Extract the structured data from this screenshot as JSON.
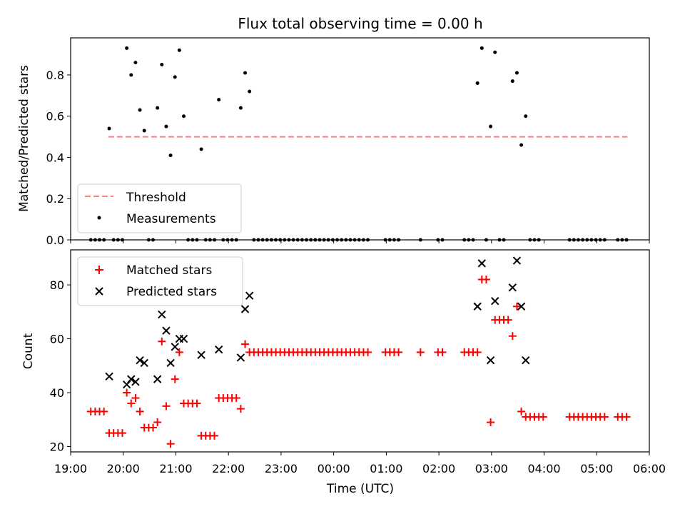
{
  "chart_data": [
    {
      "type": "scatter",
      "title": "Flux total observing time = 0.00 h",
      "xlabel": "",
      "ylabel": "Matched/Predicted stars",
      "xlim": [
        "19:00",
        "06:00"
      ],
      "ylim": [
        0.0,
        0.98
      ],
      "y_ticks": [
        "0.0",
        "0.2",
        "0.4",
        "0.6",
        "0.8"
      ],
      "legend_position": "lower-left",
      "threshold": {
        "name": "Threshold",
        "y": 0.5,
        "x_start": "19:43",
        "x_end": "05:35",
        "color": "#ff7f7f",
        "style": "dashed"
      },
      "measurements": {
        "name": "Measurements",
        "color": "#000000",
        "points": [
          [
            "19:44",
            0.54
          ],
          [
            "20:04",
            0.93
          ],
          [
            "20:09",
            0.8
          ],
          [
            "20:14",
            0.86
          ],
          [
            "20:19",
            0.63
          ],
          [
            "20:24",
            0.53
          ],
          [
            "20:39",
            0.64
          ],
          [
            "20:44",
            0.85
          ],
          [
            "20:49",
            0.55
          ],
          [
            "20:54",
            0.41
          ],
          [
            "20:59",
            0.79
          ],
          [
            "21:04",
            0.92
          ],
          [
            "21:09",
            0.6
          ],
          [
            "21:29",
            0.44
          ],
          [
            "21:49",
            0.68
          ],
          [
            "22:14",
            0.64
          ],
          [
            "22:19",
            0.81
          ],
          [
            "22:24",
            0.72
          ],
          [
            "02:44",
            0.76
          ],
          [
            "02:49",
            0.93
          ],
          [
            "02:59",
            0.55
          ],
          [
            "03:04",
            0.91
          ],
          [
            "03:24",
            0.77
          ],
          [
            "03:29",
            0.81
          ],
          [
            "03:34",
            0.46
          ],
          [
            "03:39",
            0.6
          ],
          [
            "19:23",
            0
          ],
          [
            "19:28",
            0
          ],
          [
            "19:33",
            0
          ],
          [
            "19:38",
            0
          ],
          [
            "19:49",
            0
          ],
          [
            "19:54",
            0
          ],
          [
            "19:59",
            0
          ],
          [
            "20:29",
            0
          ],
          [
            "20:34",
            0
          ],
          [
            "21:14",
            0
          ],
          [
            "21:19",
            0
          ],
          [
            "21:24",
            0
          ],
          [
            "21:34",
            0
          ],
          [
            "21:39",
            0
          ],
          [
            "21:44",
            0
          ],
          [
            "21:54",
            0
          ],
          [
            "21:59",
            0
          ],
          [
            "22:04",
            0
          ],
          [
            "22:09",
            0
          ],
          [
            "22:29",
            0
          ],
          [
            "22:34",
            0
          ],
          [
            "22:39",
            0
          ],
          [
            "22:44",
            0
          ],
          [
            "22:49",
            0
          ],
          [
            "22:54",
            0
          ],
          [
            "22:59",
            0
          ],
          [
            "23:04",
            0
          ],
          [
            "23:09",
            0
          ],
          [
            "23:14",
            0
          ],
          [
            "23:19",
            0
          ],
          [
            "23:24",
            0
          ],
          [
            "23:29",
            0
          ],
          [
            "23:34",
            0
          ],
          [
            "23:39",
            0
          ],
          [
            "23:44",
            0
          ],
          [
            "23:49",
            0
          ],
          [
            "23:54",
            0
          ],
          [
            "23:59",
            0
          ],
          [
            "00:04",
            0
          ],
          [
            "00:09",
            0
          ],
          [
            "00:14",
            0
          ],
          [
            "00:19",
            0
          ],
          [
            "00:24",
            0
          ],
          [
            "00:29",
            0
          ],
          [
            "00:34",
            0
          ],
          [
            "00:39",
            0
          ],
          [
            "00:59",
            0
          ],
          [
            "01:04",
            0
          ],
          [
            "01:09",
            0
          ],
          [
            "01:14",
            0
          ],
          [
            "01:39",
            0
          ],
          [
            "01:59",
            0
          ],
          [
            "02:04",
            0
          ],
          [
            "02:29",
            0
          ],
          [
            "02:34",
            0
          ],
          [
            "02:39",
            0
          ],
          [
            "02:54",
            0
          ],
          [
            "03:09",
            0
          ],
          [
            "03:14",
            0
          ],
          [
            "03:44",
            0
          ],
          [
            "03:49",
            0
          ],
          [
            "03:54",
            0
          ],
          [
            "04:29",
            0
          ],
          [
            "04:34",
            0
          ],
          [
            "04:39",
            0
          ],
          [
            "04:44",
            0
          ],
          [
            "04:49",
            0
          ],
          [
            "04:54",
            0
          ],
          [
            "04:59",
            0
          ],
          [
            "05:04",
            0
          ],
          [
            "05:09",
            0
          ],
          [
            "05:24",
            0
          ],
          [
            "05:29",
            0
          ],
          [
            "05:34",
            0
          ]
        ]
      }
    },
    {
      "type": "scatter",
      "title": "",
      "xlabel": "Time (UTC)",
      "ylabel": "Count",
      "xlim": [
        "19:00",
        "06:00"
      ],
      "ylim": [
        18,
        93
      ],
      "y_ticks": [
        "20",
        "40",
        "60",
        "80"
      ],
      "x_ticks": [
        "19:00",
        "20:00",
        "21:00",
        "22:00",
        "23:00",
        "00:00",
        "01:00",
        "02:00",
        "03:00",
        "04:00",
        "05:00",
        "06:00"
      ],
      "legend_position": "upper-left",
      "matched": {
        "name": "Matched stars",
        "color": "#ff0000",
        "marker": "+",
        "points": [
          [
            "19:23",
            33
          ],
          [
            "19:28",
            33
          ],
          [
            "19:33",
            33
          ],
          [
            "19:38",
            33
          ],
          [
            "19:44",
            25
          ],
          [
            "19:49",
            25
          ],
          [
            "19:54",
            25
          ],
          [
            "19:59",
            25
          ],
          [
            "20:04",
            40
          ],
          [
            "20:09",
            36
          ],
          [
            "20:14",
            38
          ],
          [
            "20:19",
            33
          ],
          [
            "20:24",
            27
          ],
          [
            "20:29",
            27
          ],
          [
            "20:34",
            27
          ],
          [
            "20:39",
            29
          ],
          [
            "20:44",
            59
          ],
          [
            "20:49",
            35
          ],
          [
            "20:54",
            21
          ],
          [
            "20:59",
            45
          ],
          [
            "21:04",
            55
          ],
          [
            "21:09",
            36
          ],
          [
            "21:14",
            36
          ],
          [
            "21:19",
            36
          ],
          [
            "21:24",
            36
          ],
          [
            "21:29",
            24
          ],
          [
            "21:34",
            24
          ],
          [
            "21:39",
            24
          ],
          [
            "21:44",
            24
          ],
          [
            "21:49",
            38
          ],
          [
            "21:54",
            38
          ],
          [
            "21:59",
            38
          ],
          [
            "22:04",
            38
          ],
          [
            "22:09",
            38
          ],
          [
            "22:14",
            34
          ],
          [
            "22:19",
            58
          ],
          [
            "22:24",
            55
          ],
          [
            "22:29",
            55
          ],
          [
            "22:34",
            55
          ],
          [
            "22:39",
            55
          ],
          [
            "22:44",
            55
          ],
          [
            "22:49",
            55
          ],
          [
            "22:54",
            55
          ],
          [
            "22:59",
            55
          ],
          [
            "23:04",
            55
          ],
          [
            "23:09",
            55
          ],
          [
            "23:14",
            55
          ],
          [
            "23:19",
            55
          ],
          [
            "23:24",
            55
          ],
          [
            "23:29",
            55
          ],
          [
            "23:34",
            55
          ],
          [
            "23:39",
            55
          ],
          [
            "23:44",
            55
          ],
          [
            "23:49",
            55
          ],
          [
            "23:54",
            55
          ],
          [
            "23:59",
            55
          ],
          [
            "00:04",
            55
          ],
          [
            "00:09",
            55
          ],
          [
            "00:14",
            55
          ],
          [
            "00:19",
            55
          ],
          [
            "00:24",
            55
          ],
          [
            "00:29",
            55
          ],
          [
            "00:34",
            55
          ],
          [
            "00:39",
            55
          ],
          [
            "00:59",
            55
          ],
          [
            "01:04",
            55
          ],
          [
            "01:09",
            55
          ],
          [
            "01:14",
            55
          ],
          [
            "01:39",
            55
          ],
          [
            "01:59",
            55
          ],
          [
            "02:04",
            55
          ],
          [
            "02:29",
            55
          ],
          [
            "02:34",
            55
          ],
          [
            "02:39",
            55
          ],
          [
            "02:44",
            55
          ],
          [
            "02:49",
            82
          ],
          [
            "02:54",
            82
          ],
          [
            "02:59",
            29
          ],
          [
            "03:04",
            67
          ],
          [
            "03:09",
            67
          ],
          [
            "03:14",
            67
          ],
          [
            "03:19",
            67
          ],
          [
            "03:24",
            61
          ],
          [
            "03:29",
            72
          ],
          [
            "03:34",
            33
          ],
          [
            "03:39",
            31
          ],
          [
            "03:44",
            31
          ],
          [
            "03:49",
            31
          ],
          [
            "03:54",
            31
          ],
          [
            "03:59",
            31
          ],
          [
            "04:29",
            31
          ],
          [
            "04:34",
            31
          ],
          [
            "04:39",
            31
          ],
          [
            "04:44",
            31
          ],
          [
            "04:49",
            31
          ],
          [
            "04:54",
            31
          ],
          [
            "04:59",
            31
          ],
          [
            "05:04",
            31
          ],
          [
            "05:09",
            31
          ],
          [
            "05:24",
            31
          ],
          [
            "05:29",
            31
          ],
          [
            "05:34",
            31
          ]
        ]
      },
      "predicted": {
        "name": "Predicted stars",
        "color": "#000000",
        "marker": "x",
        "points": [
          [
            "19:44",
            46
          ],
          [
            "20:04",
            43
          ],
          [
            "20:09",
            45
          ],
          [
            "20:14",
            44
          ],
          [
            "20:19",
            52
          ],
          [
            "20:24",
            51
          ],
          [
            "20:39",
            45
          ],
          [
            "20:44",
            69
          ],
          [
            "20:49",
            63
          ],
          [
            "20:54",
            51
          ],
          [
            "20:59",
            57
          ],
          [
            "21:04",
            60
          ],
          [
            "21:09",
            60
          ],
          [
            "21:29",
            54
          ],
          [
            "21:49",
            56
          ],
          [
            "22:14",
            53
          ],
          [
            "22:19",
            71
          ],
          [
            "22:24",
            76
          ],
          [
            "02:44",
            72
          ],
          [
            "02:49",
            88
          ],
          [
            "02:59",
            52
          ],
          [
            "03:04",
            74
          ],
          [
            "03:24",
            79
          ],
          [
            "03:29",
            89
          ],
          [
            "03:34",
            72
          ],
          [
            "03:39",
            52
          ]
        ]
      }
    }
  ]
}
